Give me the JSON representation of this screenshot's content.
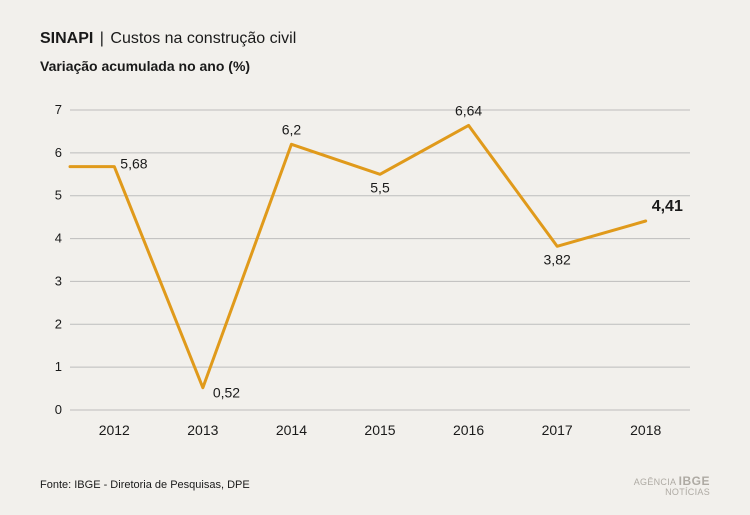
{
  "header": {
    "title_strong": "SINAPI",
    "title_sep": "|",
    "title_rest": "Custos na construção civil",
    "subtitle": "Variação acumulada no ano (%)"
  },
  "chart": {
    "type": "line",
    "background_color": "#f2f0ec",
    "grid_color": "#bdbdbd",
    "line_color": "#e09a1b",
    "highlight_color": "#e09a1b",
    "text_color": "#1a1a1a",
    "line_width": 3,
    "ylim": [
      0,
      7
    ],
    "ytick_step": 1,
    "yticks": [
      "0",
      "1",
      "2",
      "3",
      "4",
      "5",
      "6",
      "7"
    ],
    "categories": [
      "2012",
      "2013",
      "2014",
      "2015",
      "2016",
      "2017",
      "2018"
    ],
    "values": [
      5.68,
      0.52,
      6.2,
      5.5,
      6.64,
      3.82,
      4.41
    ],
    "labels": [
      "5,68",
      "0,52",
      "6,2",
      "5,5",
      "6,64",
      "3,82",
      "4,41"
    ],
    "highlight_index": 6,
    "label_fontsize": 14,
    "axis_fontsize": 13
  },
  "footer": {
    "source": "Fonte: IBGE - Diretoria de Pesquisas, DPE",
    "logo_line1": "AGÊNCIA",
    "logo_brand": "IBGE",
    "logo_line2": "NOTÍCIAS"
  }
}
